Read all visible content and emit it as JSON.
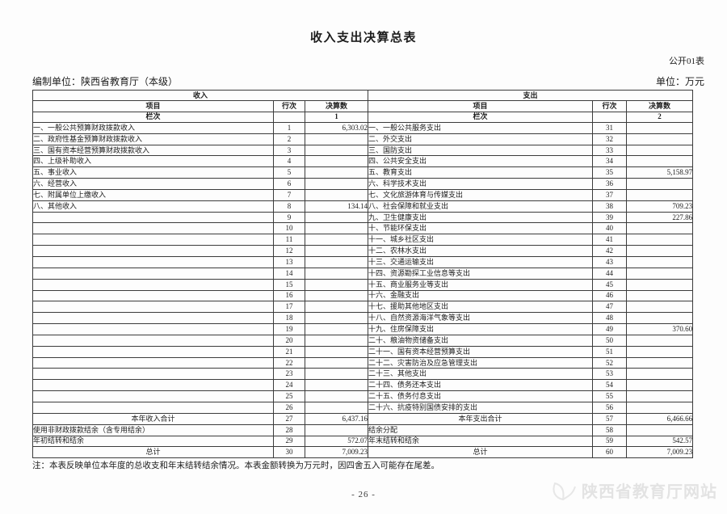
{
  "document": {
    "title": "收入支出决算总表",
    "form_code": "公开01表",
    "prepared_by": "编制单位：陕西省教育厅（本级）",
    "unit": "单位：万元",
    "note": "注：本表反映单位本年度的总收支和年末结转结余情况。本表金额转换为万元时，因四舍五入可能存在尾差。",
    "page_number": "- 26 -",
    "watermark_text": "陕西省教育厅网站"
  },
  "table": {
    "sections": {
      "income": "收入",
      "expense": "支出"
    },
    "columns": {
      "item": "项目",
      "line_no": "行次",
      "amount": "决算数"
    },
    "column_index_label": "栏次",
    "income_col_index": "1",
    "expense_col_index": "2",
    "rows": [
      {
        "income_item": "一、一般公共预算财政拨款收入",
        "income_line": "1",
        "income_amount": "6,303.02",
        "income_total": false,
        "expense_item": "一、一般公共服务支出",
        "expense_line": "31",
        "expense_amount": "",
        "expense_total": false
      },
      {
        "income_item": "二、政府性基金预算财政拨款收入",
        "income_line": "2",
        "income_amount": "",
        "income_total": false,
        "expense_item": "二、外交支出",
        "expense_line": "32",
        "expense_amount": "",
        "expense_total": false
      },
      {
        "income_item": "三、国有资本经营预算财政拨款收入",
        "income_line": "3",
        "income_amount": "",
        "income_total": false,
        "expense_item": "三、国防支出",
        "expense_line": "33",
        "expense_amount": "",
        "expense_total": false
      },
      {
        "income_item": "四、上级补助收入",
        "income_line": "4",
        "income_amount": "",
        "income_total": false,
        "expense_item": "四、公共安全支出",
        "expense_line": "34",
        "expense_amount": "",
        "expense_total": false
      },
      {
        "income_item": "五、事业收入",
        "income_line": "5",
        "income_amount": "",
        "income_total": false,
        "expense_item": "五、教育支出",
        "expense_line": "35",
        "expense_amount": "5,158.97",
        "expense_total": false
      },
      {
        "income_item": "六、经营收入",
        "income_line": "6",
        "income_amount": "",
        "income_total": false,
        "expense_item": "六、科学技术支出",
        "expense_line": "36",
        "expense_amount": "",
        "expense_total": false
      },
      {
        "income_item": "七、附属单位上缴收入",
        "income_line": "7",
        "income_amount": "",
        "income_total": false,
        "expense_item": "七、文化旅游体育与传媒支出",
        "expense_line": "37",
        "expense_amount": "",
        "expense_total": false
      },
      {
        "income_item": "八、其他收入",
        "income_line": "8",
        "income_amount": "134.14",
        "income_total": false,
        "expense_item": "八、社会保障和就业支出",
        "expense_line": "38",
        "expense_amount": "709.23",
        "expense_total": false
      },
      {
        "income_item": "",
        "income_line": "9",
        "income_amount": "",
        "income_total": false,
        "expense_item": "九、卫生健康支出",
        "expense_line": "39",
        "expense_amount": "227.86",
        "expense_total": false
      },
      {
        "income_item": "",
        "income_line": "10",
        "income_amount": "",
        "income_total": false,
        "expense_item": "十、节能环保支出",
        "expense_line": "40",
        "expense_amount": "",
        "expense_total": false
      },
      {
        "income_item": "",
        "income_line": "11",
        "income_amount": "",
        "income_total": false,
        "expense_item": "十一、城乡社区支出",
        "expense_line": "41",
        "expense_amount": "",
        "expense_total": false
      },
      {
        "income_item": "",
        "income_line": "12",
        "income_amount": "",
        "income_total": false,
        "expense_item": "十二、农林水支出",
        "expense_line": "42",
        "expense_amount": "",
        "expense_total": false
      },
      {
        "income_item": "",
        "income_line": "13",
        "income_amount": "",
        "income_total": false,
        "expense_item": "十三、交通运输支出",
        "expense_line": "43",
        "expense_amount": "",
        "expense_total": false
      },
      {
        "income_item": "",
        "income_line": "14",
        "income_amount": "",
        "income_total": false,
        "expense_item": "十四、资源勘探工业信息等支出",
        "expense_line": "44",
        "expense_amount": "",
        "expense_total": false
      },
      {
        "income_item": "",
        "income_line": "15",
        "income_amount": "",
        "income_total": false,
        "expense_item": "十五、商业服务业等支出",
        "expense_line": "45",
        "expense_amount": "",
        "expense_total": false
      },
      {
        "income_item": "",
        "income_line": "16",
        "income_amount": "",
        "income_total": false,
        "expense_item": "十六、金融支出",
        "expense_line": "46",
        "expense_amount": "",
        "expense_total": false
      },
      {
        "income_item": "",
        "income_line": "17",
        "income_amount": "",
        "income_total": false,
        "expense_item": "十七、援助其他地区支出",
        "expense_line": "47",
        "expense_amount": "",
        "expense_total": false
      },
      {
        "income_item": "",
        "income_line": "18",
        "income_amount": "",
        "income_total": false,
        "expense_item": "十八、自然资源海洋气象等支出",
        "expense_line": "48",
        "expense_amount": "",
        "expense_total": false
      },
      {
        "income_item": "",
        "income_line": "19",
        "income_amount": "",
        "income_total": false,
        "expense_item": "十九、住房保障支出",
        "expense_line": "49",
        "expense_amount": "370.60",
        "expense_total": false
      },
      {
        "income_item": "",
        "income_line": "20",
        "income_amount": "",
        "income_total": false,
        "expense_item": "二十、粮油物资储备支出",
        "expense_line": "50",
        "expense_amount": "",
        "expense_total": false
      },
      {
        "income_item": "",
        "income_line": "21",
        "income_amount": "",
        "income_total": false,
        "expense_item": "二十一、国有资本经营预算支出",
        "expense_line": "51",
        "expense_amount": "",
        "expense_total": false
      },
      {
        "income_item": "",
        "income_line": "22",
        "income_amount": "",
        "income_total": false,
        "expense_item": "二十二、灾害防治及应急管理支出",
        "expense_line": "52",
        "expense_amount": "",
        "expense_total": false
      },
      {
        "income_item": "",
        "income_line": "23",
        "income_amount": "",
        "income_total": false,
        "expense_item": "二十三、其他支出",
        "expense_line": "53",
        "expense_amount": "",
        "expense_total": false
      },
      {
        "income_item": "",
        "income_line": "24",
        "income_amount": "",
        "income_total": false,
        "expense_item": "二十四、债务还本支出",
        "expense_line": "54",
        "expense_amount": "",
        "expense_total": false
      },
      {
        "income_item": "",
        "income_line": "25",
        "income_amount": "",
        "income_total": false,
        "expense_item": "二十五、债务付息支出",
        "expense_line": "55",
        "expense_amount": "",
        "expense_total": false
      },
      {
        "income_item": "",
        "income_line": "26",
        "income_amount": "",
        "income_total": false,
        "expense_item": "二十六、抗疫特别国债安排的支出",
        "expense_line": "56",
        "expense_amount": "",
        "expense_total": false
      },
      {
        "income_item": "本年收入合计",
        "income_line": "27",
        "income_amount": "6,437.16",
        "income_total": true,
        "expense_item": "本年支出合计",
        "expense_line": "57",
        "expense_amount": "6,466.66",
        "expense_total": true
      },
      {
        "income_item": "使用非财政拨款结余（含专用结余）",
        "income_line": "28",
        "income_amount": "",
        "income_total": false,
        "expense_item": "结余分配",
        "expense_line": "58",
        "expense_amount": "",
        "expense_total": false
      },
      {
        "income_item": "年初结转和结余",
        "income_line": "29",
        "income_amount": "572.07",
        "income_total": false,
        "expense_item": "年末结转和结余",
        "expense_line": "59",
        "expense_amount": "542.57",
        "expense_total": false
      },
      {
        "income_item": "总计",
        "income_line": "30",
        "income_amount": "7,009.23",
        "income_total": true,
        "expense_item": "总计",
        "expense_line": "60",
        "expense_amount": "7,009.23",
        "expense_total": true
      }
    ]
  },
  "colors": {
    "border": "#3b3b3b",
    "text": "#1d1d1d",
    "watermark": "#e3e3e3"
  }
}
